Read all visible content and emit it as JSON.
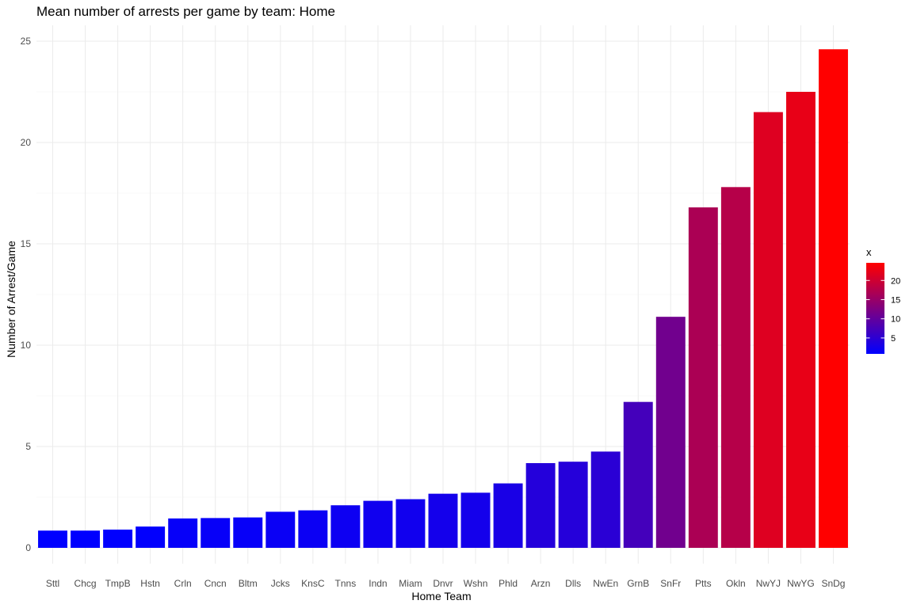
{
  "chart_data": {
    "type": "bar",
    "title": "Mean number of arrests per game by team: Home",
    "xlabel": "Home Team",
    "ylabel": "Number of Arrest/Game",
    "ylim": [
      0,
      25.8
    ],
    "yticks": [
      0,
      5,
      10,
      15,
      20,
      25
    ],
    "grid": true,
    "categories": [
      "Sttl",
      "Chcg",
      "TmpB",
      "Hstn",
      "Crln",
      "Cncn",
      "Bltm",
      "Jcks",
      "KnsC",
      "Tnns",
      "Indn",
      "Miam",
      "Dnvr",
      "Wshn",
      "Phld",
      "Arzn",
      "Dlls",
      "NwEn",
      "GrnB",
      "SnFr",
      "Ptts",
      "Okln",
      "NwYJ",
      "NwYG",
      "SnDg"
    ],
    "values": [
      0.85,
      0.85,
      0.9,
      1.05,
      1.45,
      1.47,
      1.5,
      1.78,
      1.85,
      2.1,
      2.32,
      2.4,
      2.67,
      2.72,
      3.18,
      4.18,
      4.25,
      4.75,
      7.2,
      11.4,
      16.8,
      17.8,
      21.5,
      22.5,
      24.6
    ],
    "legend": {
      "title": "x",
      "position": "right",
      "labels": [
        "20",
        "15",
        "10",
        "5"
      ],
      "breaks": [
        20,
        15,
        10,
        5
      ],
      "range": [
        0.85,
        24.6
      ],
      "color_low": "#0000FF",
      "color_high": "#FF0000"
    }
  }
}
